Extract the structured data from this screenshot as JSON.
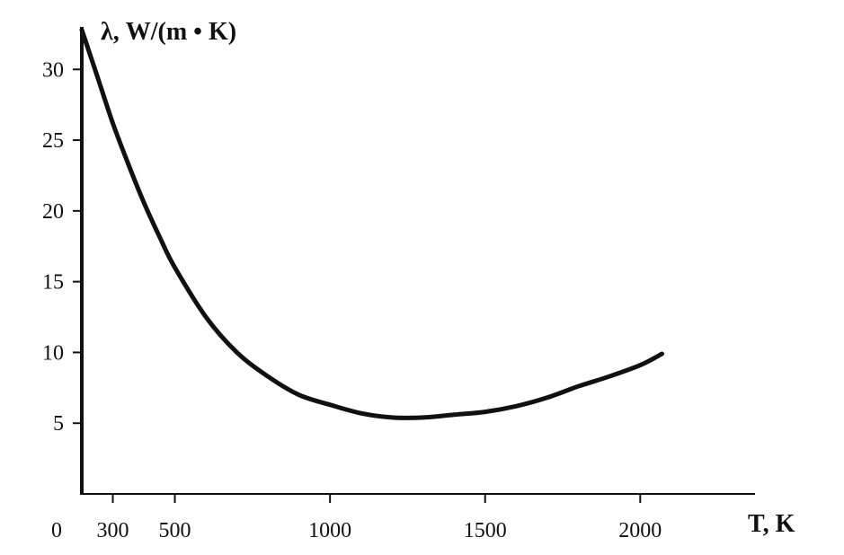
{
  "chart_data": {
    "type": "line",
    "title": "",
    "xlabel": "T, K",
    "ylabel": "λ, W/(m • K)",
    "origin_label": "0",
    "xlim": [
      200,
      2370
    ],
    "ylim": [
      0,
      33
    ],
    "x_ticks": [
      300,
      500,
      1000,
      1500,
      2000
    ],
    "y_ticks": [
      5,
      10,
      15,
      20,
      25,
      30
    ],
    "grid": false,
    "legend": "none",
    "line_color": "#111111",
    "series": [
      {
        "x": [
          200,
          250,
          300,
          350,
          400,
          450,
          500,
          600,
          700,
          800,
          900,
          1000,
          1100,
          1200,
          1300,
          1400,
          1500,
          1600,
          1700,
          1800,
          1900,
          2000,
          2070
        ],
        "y": [
          32.8,
          29.5,
          26.2,
          23.3,
          20.6,
          18.2,
          16.0,
          12.5,
          10.0,
          8.3,
          7.0,
          6.3,
          5.7,
          5.4,
          5.4,
          5.6,
          5.8,
          6.2,
          6.8,
          7.6,
          8.3,
          9.1,
          9.9
        ]
      }
    ]
  }
}
